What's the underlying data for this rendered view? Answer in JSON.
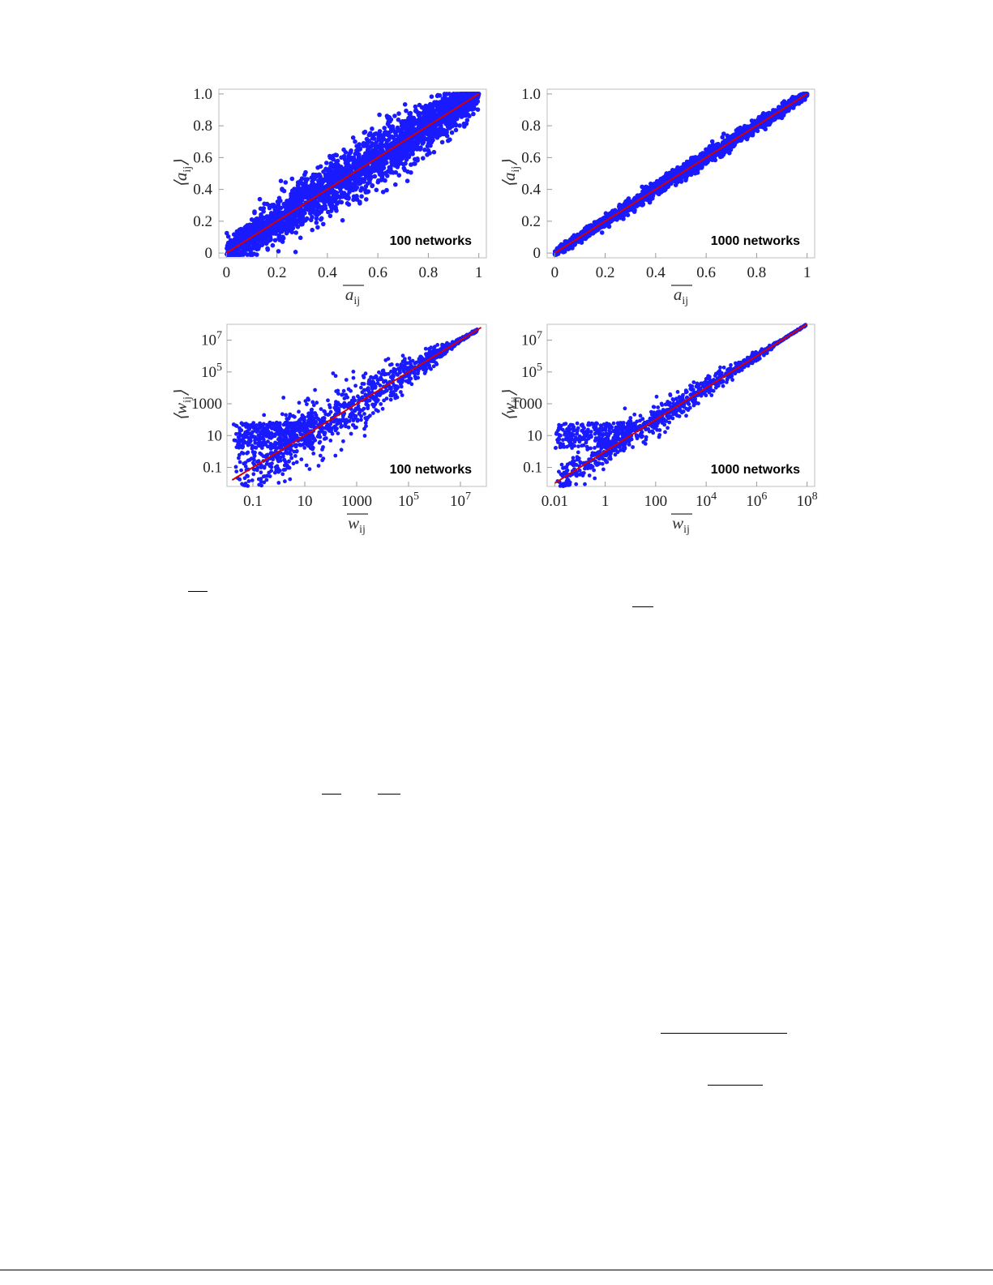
{
  "chart_data": [
    {
      "type": "scatter",
      "panel": "top-left",
      "annotation": "100 networks",
      "xlabel": "a_ij (ensemble average, overline)",
      "ylabel": "⟨a_ij⟩",
      "xlabel_main": "a",
      "ylabel_main": "a",
      "label_sub": "ij",
      "xlim": [
        0,
        1
      ],
      "ylim": [
        0,
        1
      ],
      "x_scale": "linear",
      "y_scale": "linear",
      "xticks": [
        "0",
        "0.2",
        "0.4",
        "0.6",
        "0.8",
        "1"
      ],
      "yticks": [
        "0",
        "0.2",
        "0.4",
        "0.6",
        "0.8",
        "1.0"
      ],
      "series": [
        {
          "kind": "points",
          "color": "#1a1aff",
          "spread": 0.085,
          "n": 2600
        },
        {
          "kind": "identity-line",
          "color": "#d40000",
          "x": [
            0,
            1
          ],
          "y": [
            0,
            1
          ]
        }
      ]
    },
    {
      "type": "scatter",
      "panel": "top-right",
      "annotation": "1000 networks",
      "xlabel_main": "a",
      "ylabel_main": "a",
      "label_sub": "ij",
      "xlim": [
        0,
        1
      ],
      "ylim": [
        0,
        1
      ],
      "x_scale": "linear",
      "y_scale": "linear",
      "xticks": [
        "0",
        "0.2",
        "0.4",
        "0.6",
        "0.8",
        "1"
      ],
      "yticks": [
        "0",
        "0.2",
        "0.4",
        "0.6",
        "0.8",
        "1.0"
      ],
      "series": [
        {
          "kind": "points",
          "color": "#1a1aff",
          "spread": 0.022,
          "n": 2200
        },
        {
          "kind": "identity-line",
          "color": "#d40000",
          "x": [
            0,
            1
          ],
          "y": [
            0,
            1
          ]
        }
      ]
    },
    {
      "type": "scatter",
      "panel": "bottom-left",
      "annotation": "100 networks",
      "xlabel_main": "w",
      "ylabel_main": "w",
      "label_sub": "ij",
      "x_scale": "log",
      "y_scale": "log",
      "xlim_log10": [
        -2.0,
        8.0
      ],
      "ylim_log10": [
        -2.2,
        8.0
      ],
      "xticks": [
        {
          "text": "0.1"
        },
        {
          "text": "10"
        },
        {
          "text": "1000"
        },
        {
          "text": "10",
          "sup": "5"
        },
        {
          "text": "10",
          "sup": "7"
        }
      ],
      "yticks": [
        {
          "text": "0.1"
        },
        {
          "text": "10"
        },
        {
          "text": "1000"
        },
        {
          "text": "10",
          "sup": "5"
        },
        {
          "text": "10",
          "sup": "7"
        }
      ],
      "series": [
        {
          "kind": "points",
          "color": "#1a1aff",
          "n": 1400,
          "noise_low": 0.9,
          "noise_high": 0.05
        },
        {
          "kind": "identity-line",
          "color": "#d40000",
          "x_log10": [
            -1.8,
            7.8
          ],
          "y_log10": [
            -1.8,
            7.8
          ]
        }
      ]
    },
    {
      "type": "scatter",
      "panel": "bottom-right",
      "annotation": "1000 networks",
      "xlabel_main": "w",
      "ylabel_main": "w",
      "label_sub": "ij",
      "x_scale": "log",
      "y_scale": "log",
      "xlim_log10": [
        -2.3,
        8.3
      ],
      "ylim_log10": [
        -2.2,
        8.0
      ],
      "xticks": [
        {
          "text": "0.01"
        },
        {
          "text": "1"
        },
        {
          "text": "100"
        },
        {
          "text": "10",
          "sup": "4"
        },
        {
          "text": "10",
          "sup": "6"
        },
        {
          "text": "10",
          "sup": "8"
        }
      ],
      "yticks": [
        {
          "text": "0.1"
        },
        {
          "text": "10"
        },
        {
          "text": "1000"
        },
        {
          "text": "10",
          "sup": "5"
        },
        {
          "text": "10",
          "sup": "7"
        }
      ],
      "series": [
        {
          "kind": "points",
          "color": "#1a1aff",
          "n": 1200,
          "noise_low": 0.45,
          "noise_high": 0.02
        },
        {
          "kind": "identity-line",
          "color": "#d40000",
          "x_log10": [
            -2.0,
            8.0
          ],
          "y_log10": [
            -2.0,
            8.0
          ]
        }
      ]
    }
  ]
}
